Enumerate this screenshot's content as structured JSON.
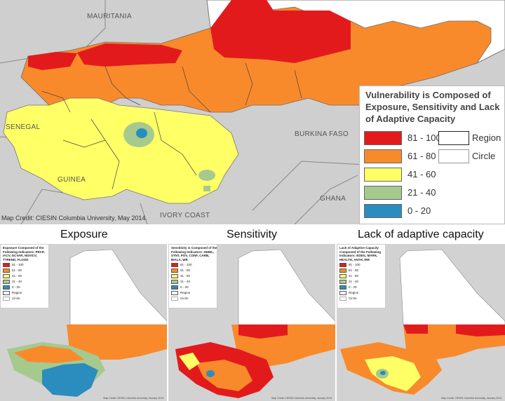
{
  "main_map": {
    "countries": {
      "mauritania": "MAURITANIA",
      "senegal": "SENEGAL",
      "guinea": "GUINEA",
      "ivory_coast": "IVORY COAST",
      "burkina_faso": "BURKINA FASO",
      "ghana": "GHANA"
    },
    "credit": "Map Credit: CIESIN Columbia University, May 2014."
  },
  "legend": {
    "title": "Vulnerability is Composed of Exposure, Sensitivity and Lack of Adaptive Capacity",
    "classes": [
      {
        "label": "81 - 100",
        "color": "#e31a1c"
      },
      {
        "label": "61 - 80",
        "color": "#f88a2c"
      },
      {
        "label": "41 - 60",
        "color": "#ffff66"
      },
      {
        "label": "21 - 40",
        "color": "#a6c98e"
      },
      {
        "label": "0 - 20",
        "color": "#2b8cbe"
      }
    ],
    "boundaries": [
      {
        "label": "Region"
      },
      {
        "label": "Circle"
      }
    ]
  },
  "panels": [
    {
      "title": "Exposure",
      "legend_title": "Exposure Composed of the Following Indicators: PRCP, IACV, DCVAR, NDVICV, TTREND, FLOOD"
    },
    {
      "title": "Sensitivity",
      "legend_title": "Sensitivity is Composed of the Following Indicators: HHWL, STNT, POV, CONF, CARB, BIALA, WR"
    },
    {
      "title": "Lack of adaptive capacity",
      "legend_title": "Lack of Adaptive Capacity Composed of the Following Indicators: EDEG, MARK, HEALTH, ANTH, IRR"
    }
  ],
  "mini_legend_classes": [
    "81 - 100",
    "61 - 80",
    "41 - 60",
    "21 - 40",
    "0 - 20",
    "Region",
    "Circle"
  ],
  "mini_credit": "Map Credit: CIESIN Columbia University, January 2014."
}
